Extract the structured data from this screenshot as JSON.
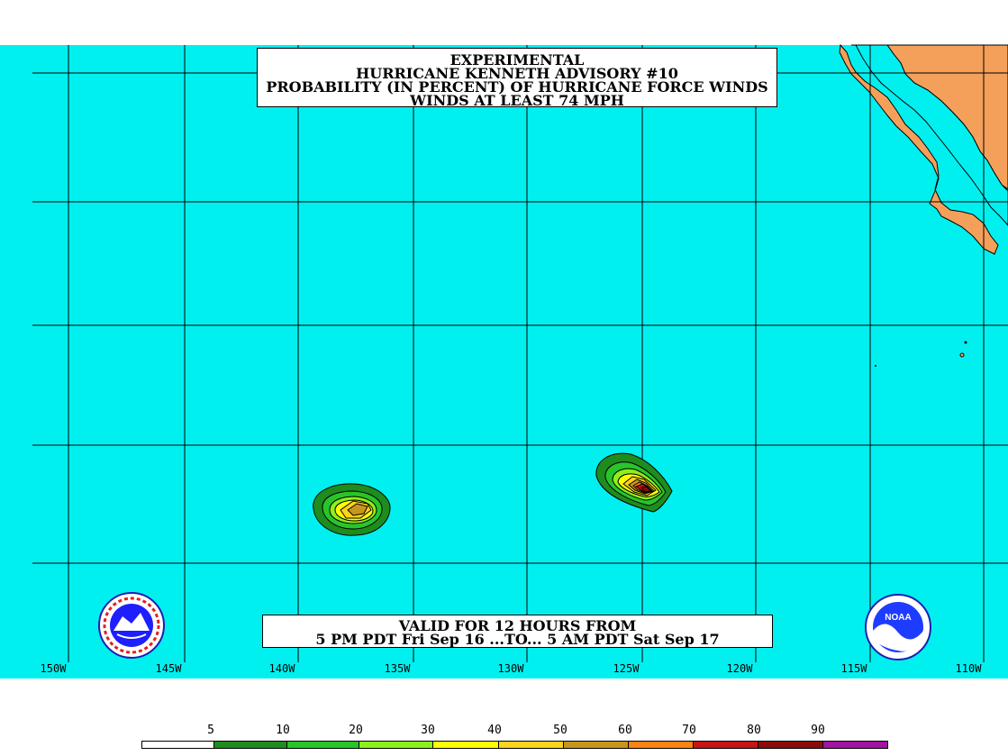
{
  "title": {
    "lines": [
      "EXPERIMENTAL",
      "HURRICANE KENNETH ADVISORY #10",
      "PROBABILITY (IN PERCENT) OF HURRICANE FORCE WINDS",
      "WINDS AT LEAST 74 MPH"
    ]
  },
  "valid": {
    "line1": "VALID FOR 12 HOURS FROM",
    "line2": "5 PM PDT Fri Sep 16 ...TO... 5 AM PDT Sat Sep 17"
  },
  "longitudes": [
    "150W",
    "145W",
    "140W",
    "135W",
    "130W",
    "125W",
    "120W",
    "115W",
    "110W"
  ],
  "legend": {
    "labels": [
      "5",
      "10",
      "20",
      "30",
      "40",
      "50",
      "60",
      "70",
      "80",
      "90"
    ],
    "colors": [
      "#ffffff",
      "#1e8c1e",
      "#29c429",
      "#8ef01a",
      "#ffff00",
      "#ffd21e",
      "#c8961e",
      "#ff8214",
      "#c81414",
      "#8c0a0a",
      "#a014a0"
    ]
  },
  "colors": {
    "ocean": "#00f0f0",
    "land": "#f5a05a",
    "grid": "#000000"
  },
  "logos": {
    "left": "nws-logo",
    "right": "noaa-logo",
    "right_text": "NOAA"
  }
}
